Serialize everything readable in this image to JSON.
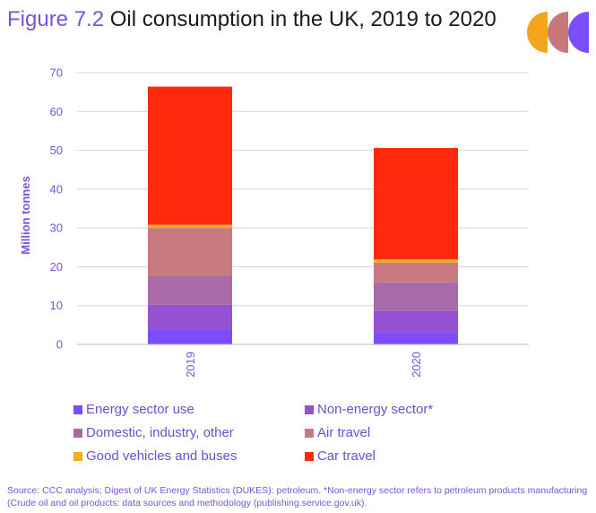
{
  "header": {
    "figure_label": "Figure 7.2",
    "title": "Oil consumption in the UK, 2019 to 2020"
  },
  "logo": {
    "colors": [
      "#f5a51c",
      "#c9787a",
      "#7b4dff"
    ]
  },
  "chart_data": {
    "type": "bar",
    "stacked": true,
    "categories": [
      "2019",
      "2020"
    ],
    "series": [
      {
        "name": "Energy sector use",
        "color": "#7b4dff",
        "values": [
          3.8,
          3.1
        ]
      },
      {
        "name": "Non-energy sector*",
        "color": "#9452d3",
        "values": [
          6.4,
          5.6
        ]
      },
      {
        "name": "Domestic, industry, other",
        "color": "#a86ba8",
        "values": [
          7.5,
          7.3
        ]
      },
      {
        "name": "Air travel",
        "color": "#c97a80",
        "values": [
          12.3,
          5.1
        ]
      },
      {
        "name": "Good vehicles and buses",
        "color": "#f5ab1e",
        "values": [
          0.8,
          0.8
        ]
      },
      {
        "name": "Car travel",
        "color": "#ff2a0d",
        "values": [
          35.6,
          28.7
        ]
      }
    ],
    "ylabel": "Million tonnes",
    "ylim": [
      0,
      70
    ],
    "yticks": [
      "0",
      "10",
      "20",
      "30",
      "40",
      "50",
      "60",
      "70"
    ],
    "grid": true,
    "legend_position": "bottom"
  },
  "footer": {
    "source": "Source: CCC analysis; Digest of UK Energy Statistics (DUKES): petroleum. *Non-energy sector refers to petroleum products manufacturing (Crude oil and oil products: data sources and methodology (publishing.service.gov.uk)."
  }
}
